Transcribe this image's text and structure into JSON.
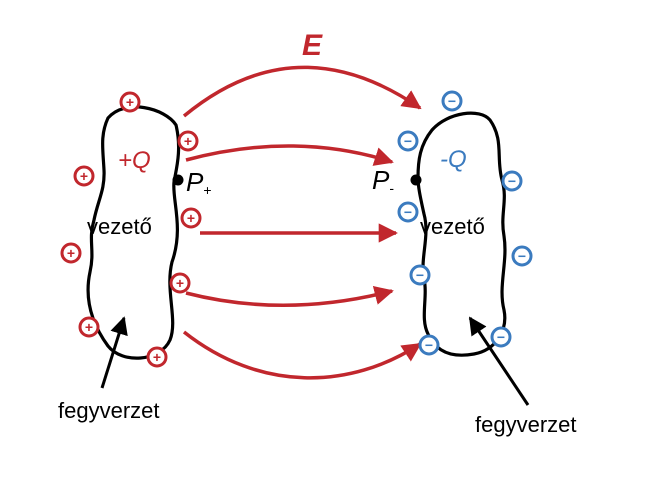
{
  "field_label": "E",
  "left": {
    "charge_label": "+Q",
    "point_label": "P",
    "point_sub": "+",
    "conductor_label": "vezető",
    "plate_label": "fegyverzet",
    "charge_sign": "+"
  },
  "right": {
    "charge_label": "-Q",
    "point_label": "P",
    "point_sub": "-",
    "conductor_label": "vezető",
    "plate_label": "fegyverzet",
    "charge_sign": "−"
  },
  "colors": {
    "positive": "#c1272d",
    "negative": "#3b7bbf",
    "arrow": "#c1272d",
    "outline": "#000000",
    "text": "#000000"
  }
}
